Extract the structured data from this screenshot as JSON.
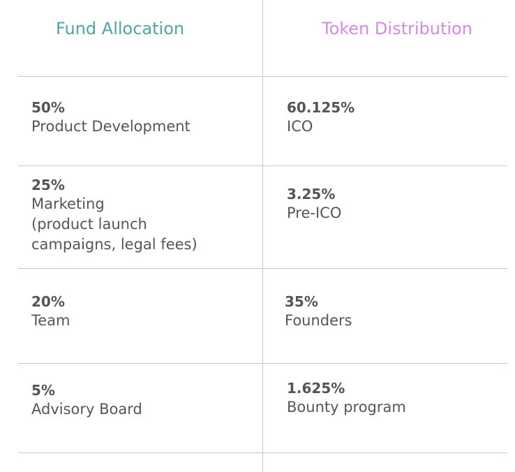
{
  "colors": {
    "fund_heading": "#4ea6a0",
    "token_heading": "#d58ae6",
    "text": "#555555",
    "divider": "#c8c8c8"
  },
  "headers": {
    "fund": "Fund Allocation",
    "token": "Token Distribution"
  },
  "fund_rows": [
    {
      "pct": "50%",
      "label": "Product Development"
    },
    {
      "pct": "25%",
      "label": "Marketing\n(product launch\ncampaigns, legal fees)"
    },
    {
      "pct": "20%",
      "label": "Team"
    },
    {
      "pct": "5%",
      "label": "Advisory Board"
    }
  ],
  "token_rows": [
    {
      "pct": "60.125%",
      "label": "ICO"
    },
    {
      "pct": "3.25%",
      "label": "Pre-ICO"
    },
    {
      "pct": "35%",
      "label": "Founders"
    },
    {
      "pct": "1.625%",
      "label": "Bounty program"
    }
  ]
}
